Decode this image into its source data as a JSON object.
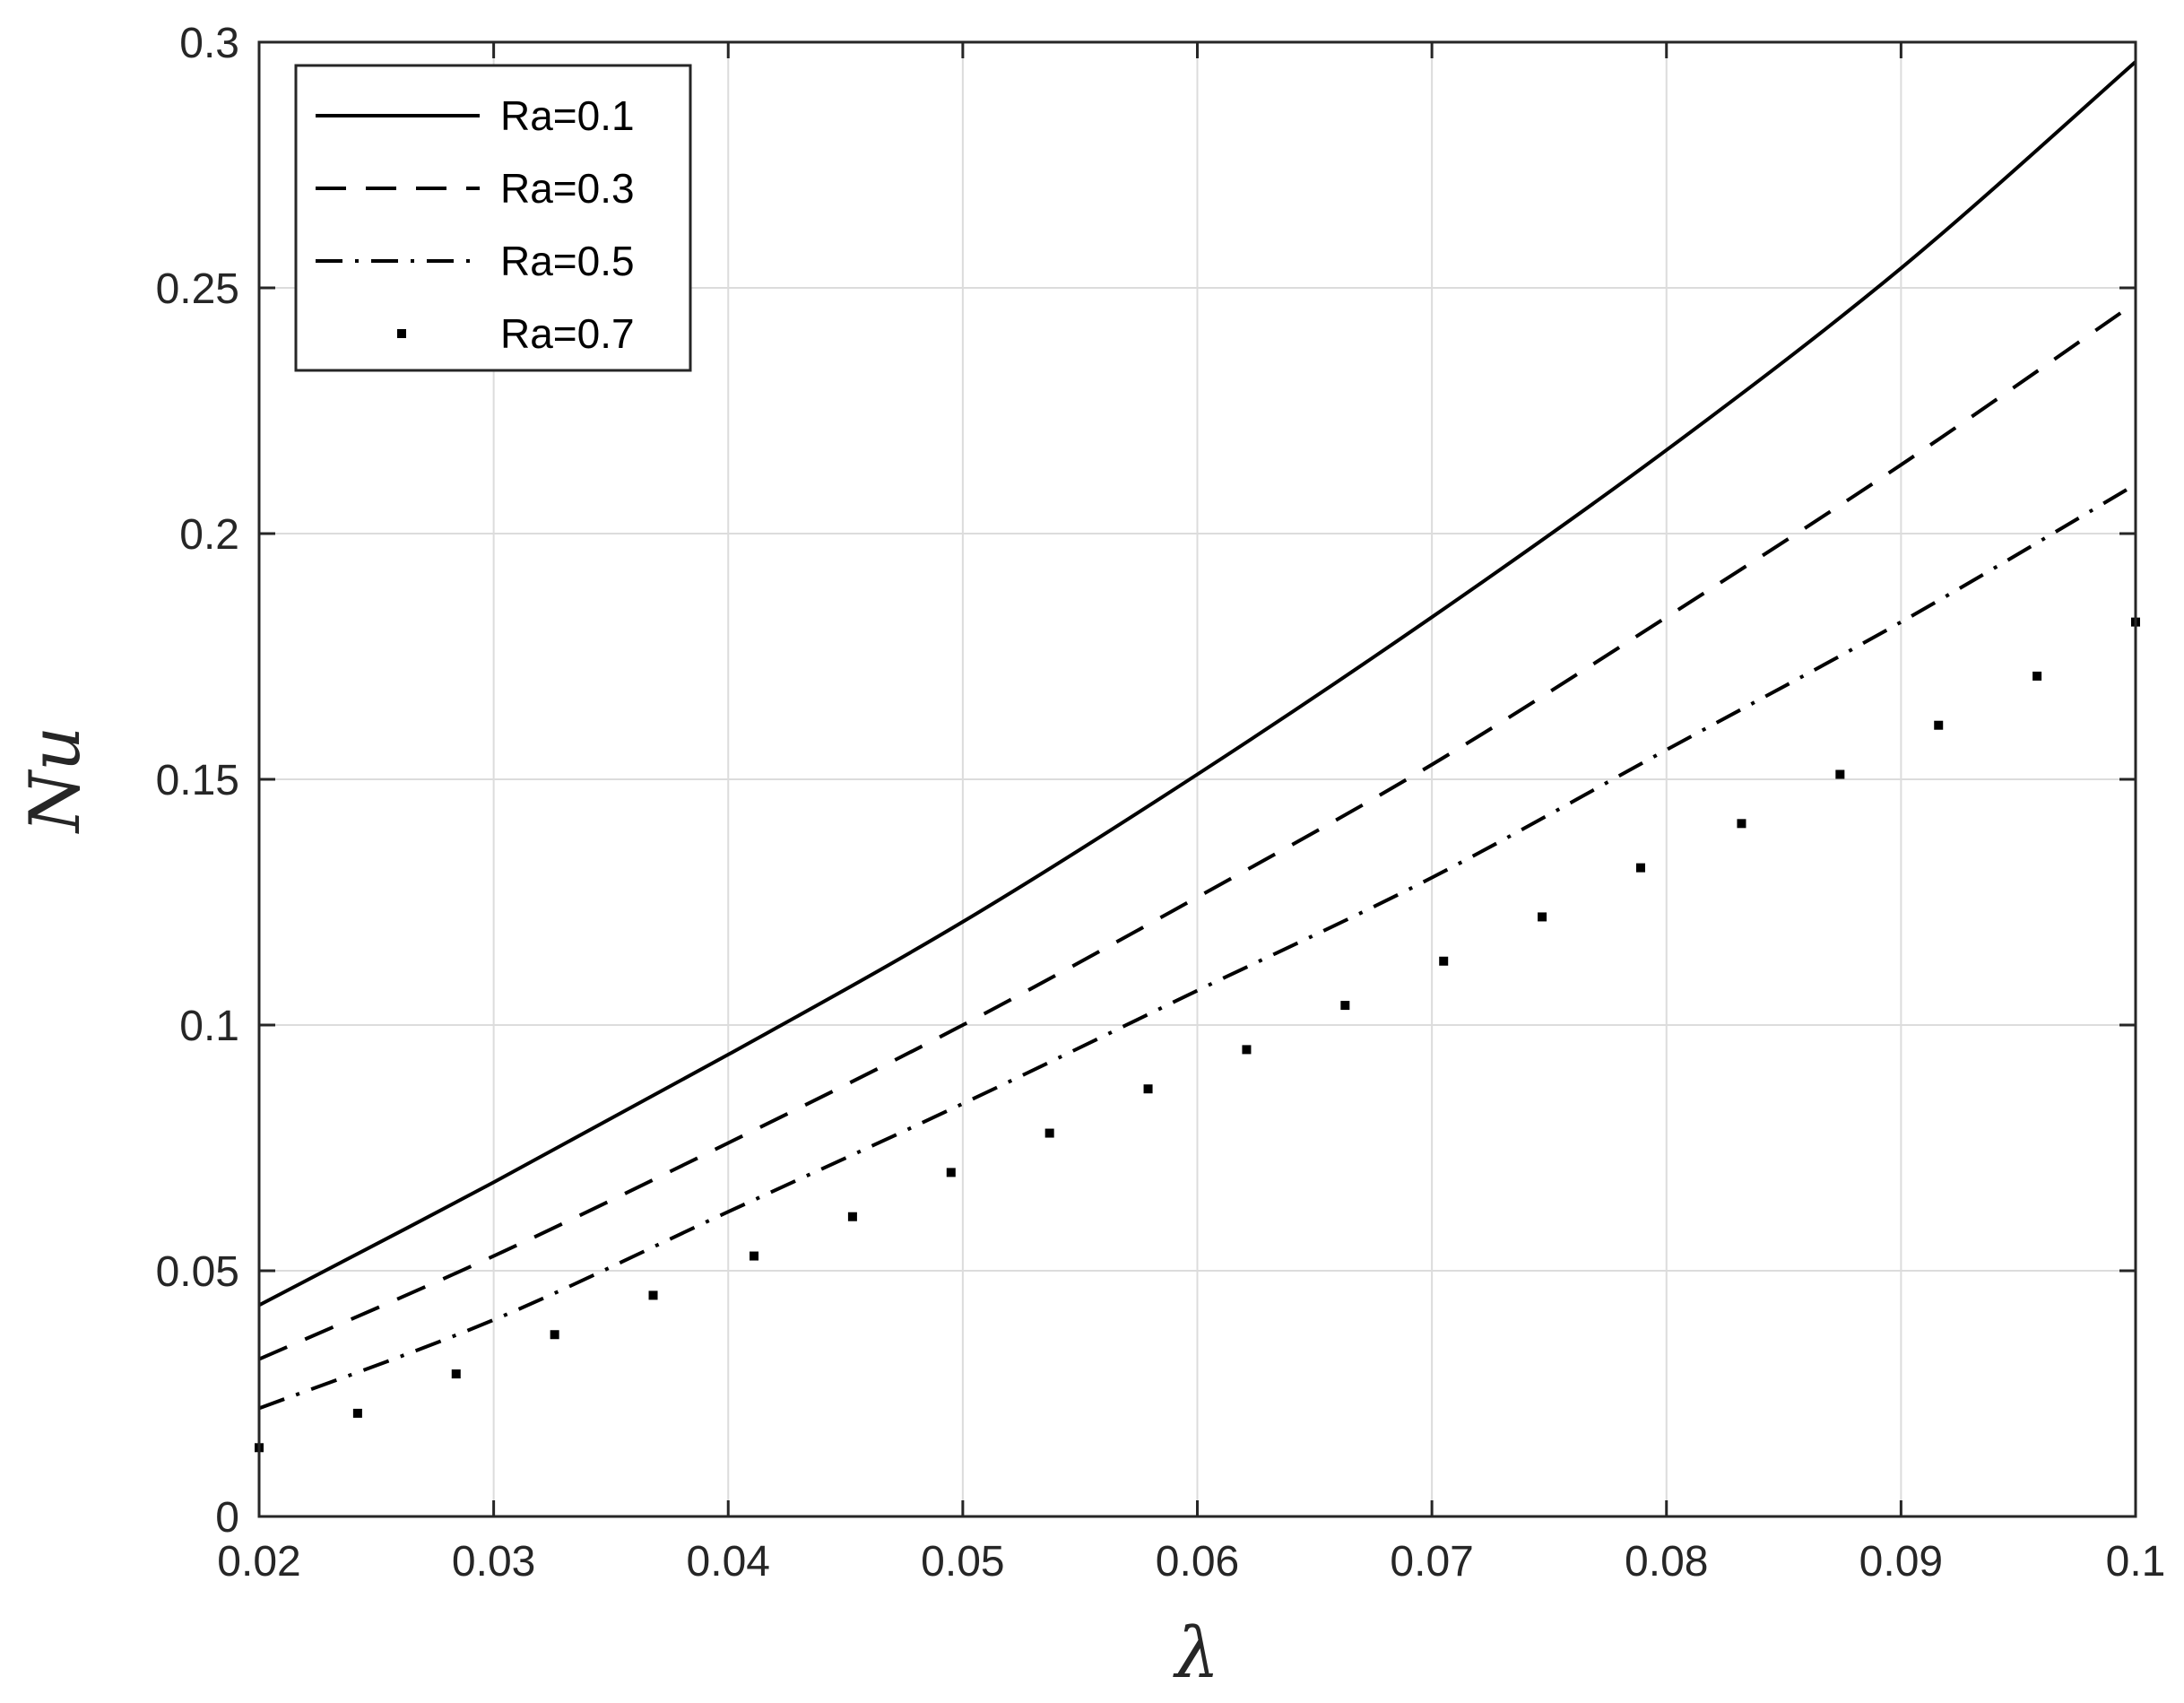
{
  "chart_data": {
    "type": "line",
    "xlabel": "λ",
    "ylabel": "Nu",
    "xlim": [
      0.02,
      0.1
    ],
    "ylim": [
      0,
      0.3
    ],
    "grid": true,
    "legend_position": "top-left",
    "x_ticks": [
      {
        "value": 0.02,
        "label": "0.02"
      },
      {
        "value": 0.03,
        "label": "0.03"
      },
      {
        "value": 0.04,
        "label": "0.04"
      },
      {
        "value": 0.05,
        "label": "0.05"
      },
      {
        "value": 0.06,
        "label": "0.06"
      },
      {
        "value": 0.07,
        "label": "0.07"
      },
      {
        "value": 0.08,
        "label": "0.08"
      },
      {
        "value": 0.09,
        "label": "0.09"
      },
      {
        "value": 0.1,
        "label": "0.1"
      }
    ],
    "y_ticks": [
      {
        "value": 0,
        "label": "0"
      },
      {
        "value": 0.05,
        "label": "0.05"
      },
      {
        "value": 0.1,
        "label": "0.1"
      },
      {
        "value": 0.15,
        "label": "0.15"
      },
      {
        "value": 0.2,
        "label": "0.2"
      },
      {
        "value": 0.25,
        "label": "0.25"
      },
      {
        "value": 0.3,
        "label": "0.3"
      }
    ],
    "series": [
      {
        "name": "Ra=0.1",
        "style": "solid",
        "color": "#000000",
        "x": [
          0.02,
          0.03,
          0.04,
          0.05,
          0.06,
          0.07,
          0.08,
          0.09,
          0.1
        ],
        "y": [
          0.043,
          0.068,
          0.094,
          0.121,
          0.151,
          0.183,
          0.217,
          0.254,
          0.296
        ]
      },
      {
        "name": "Ra=0.3",
        "style": "dashed",
        "color": "#000000",
        "x": [
          0.02,
          0.03,
          0.04,
          0.05,
          0.06,
          0.07,
          0.08,
          0.09,
          0.1
        ],
        "y": [
          0.032,
          0.053,
          0.076,
          0.1,
          0.126,
          0.153,
          0.183,
          0.214,
          0.247
        ]
      },
      {
        "name": "Ra=0.5",
        "style": "dash-dot",
        "color": "#000000",
        "x": [
          0.02,
          0.03,
          0.04,
          0.05,
          0.06,
          0.07,
          0.08,
          0.09,
          0.1
        ],
        "y": [
          0.022,
          0.04,
          0.062,
          0.084,
          0.107,
          0.13,
          0.156,
          0.182,
          0.21
        ]
      },
      {
        "name": "Ra=0.7",
        "style": "dots",
        "color": "#000000",
        "x": [
          0.02,
          0.0242,
          0.0284,
          0.0326,
          0.0368,
          0.0411,
          0.0453,
          0.0495,
          0.0537,
          0.0579,
          0.0621,
          0.0663,
          0.0705,
          0.0747,
          0.0789,
          0.0832,
          0.0874,
          0.0916,
          0.0958,
          0.1
        ],
        "y": [
          0.014,
          0.021,
          0.029,
          0.037,
          0.045,
          0.053,
          0.061,
          0.07,
          0.078,
          0.087,
          0.095,
          0.104,
          0.113,
          0.122,
          0.132,
          0.141,
          0.151,
          0.161,
          0.171,
          0.182
        ]
      }
    ]
  }
}
